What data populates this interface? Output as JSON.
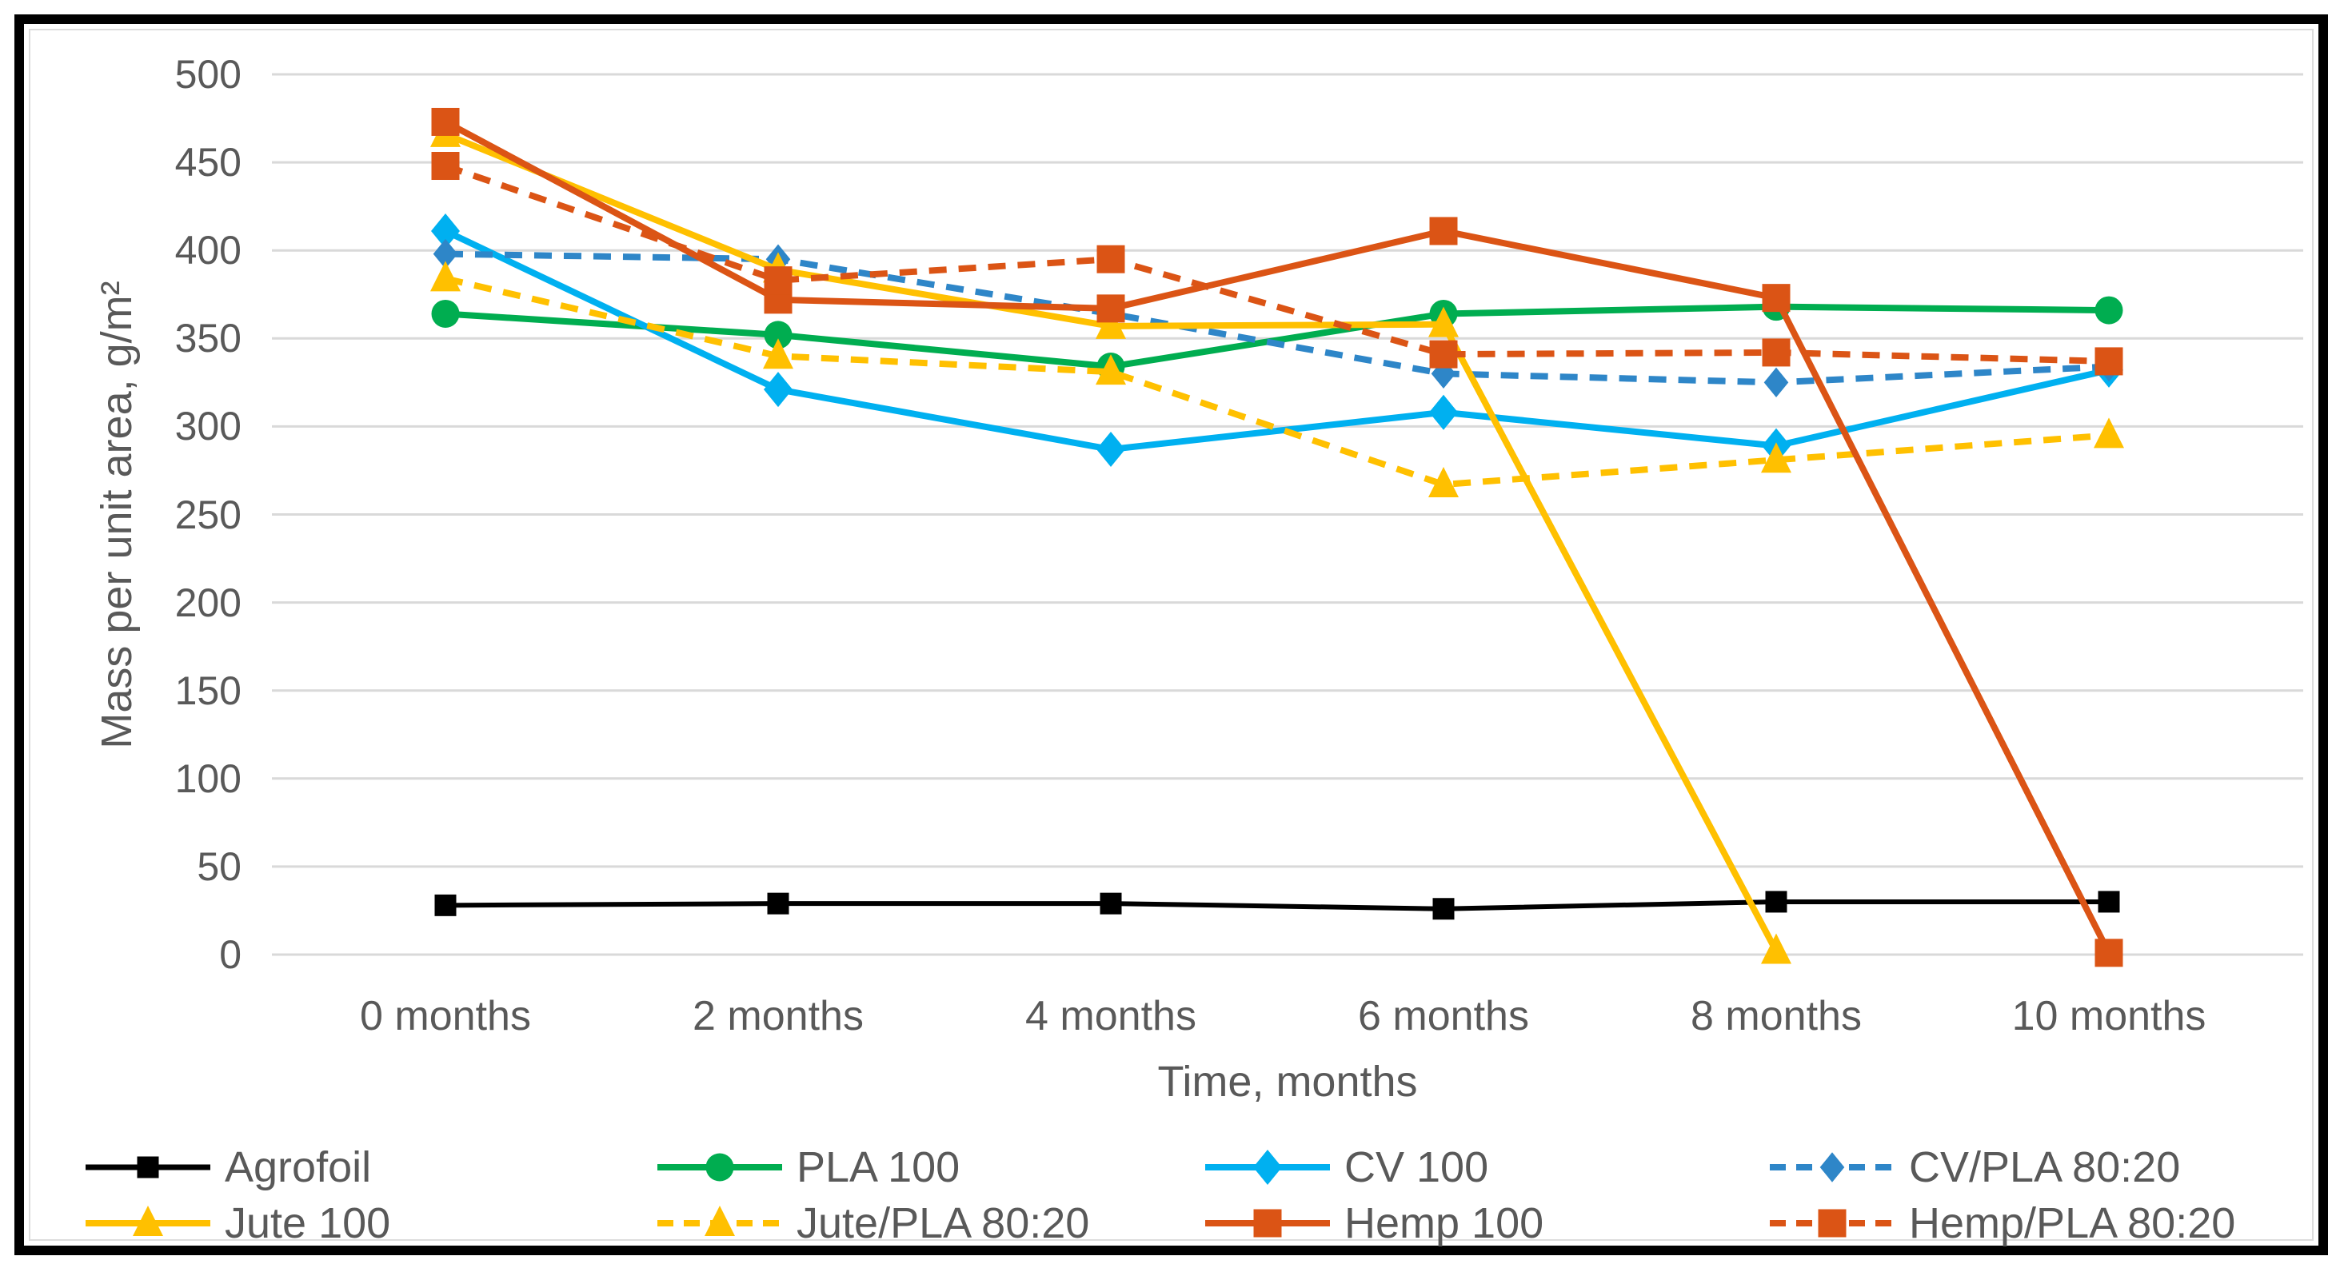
{
  "figure": {
    "background": "#FFFFFF",
    "frame_border_color": "#000000",
    "inner_border_color": "#DCDCDC",
    "grid_color": "#D9D9D9",
    "text_color": "#595959"
  },
  "chart_data": {
    "type": "line",
    "title": "",
    "xlabel": "Time, months",
    "ylabel": "Mass per unit area, g/m²",
    "ylim": [
      0,
      500
    ],
    "ytick_step": 50,
    "yticks": [
      "500",
      "450",
      "400",
      "350",
      "300",
      "250",
      "200",
      "150",
      "100",
      "50",
      "0"
    ],
    "grid": "horizontal",
    "legend_position": "bottom",
    "categories": [
      "0 months",
      "2 months",
      "4 months",
      "6 months",
      "8 months",
      "10 months"
    ],
    "series": [
      {
        "name": "Agrofoil",
        "color": "#000000",
        "marker": "square",
        "dashed": false,
        "values": [
          28,
          29,
          29,
          26,
          30,
          30
        ]
      },
      {
        "name": "PLA 100",
        "color": "#00AD50",
        "marker": "circle",
        "dashed": false,
        "values": [
          364,
          352,
          334,
          364,
          368,
          366
        ]
      },
      {
        "name": "CV 100",
        "color": "#00B0F0",
        "marker": "diamond",
        "dashed": false,
        "values": [
          411,
          321,
          287,
          308,
          289,
          332
        ]
      },
      {
        "name": "CV/PLA 80:20",
        "color": "#2E86C8",
        "marker": "diamond",
        "dashed": true,
        "values": [
          398,
          395,
          364,
          330,
          325,
          334
        ]
      },
      {
        "name": "Jute 100",
        "color": "#FFC000",
        "marker": "triangle",
        "dashed": false,
        "values": [
          466,
          389,
          357,
          358,
          2,
          null
        ]
      },
      {
        "name": "Jute/PLA 80:20",
        "color": "#FFC000",
        "marker": "triangle",
        "dashed": true,
        "values": [
          384,
          340,
          331,
          267,
          281,
          295
        ]
      },
      {
        "name": "Hemp 100",
        "color": "#DB5415",
        "marker": "square",
        "dashed": false,
        "values": [
          473,
          372,
          367,
          411,
          373,
          1
        ]
      },
      {
        "name": "Hemp/PLA 80:20",
        "color": "#DB5415",
        "marker": "square",
        "dashed": true,
        "values": [
          448,
          383,
          395,
          341,
          342,
          337
        ]
      }
    ]
  }
}
